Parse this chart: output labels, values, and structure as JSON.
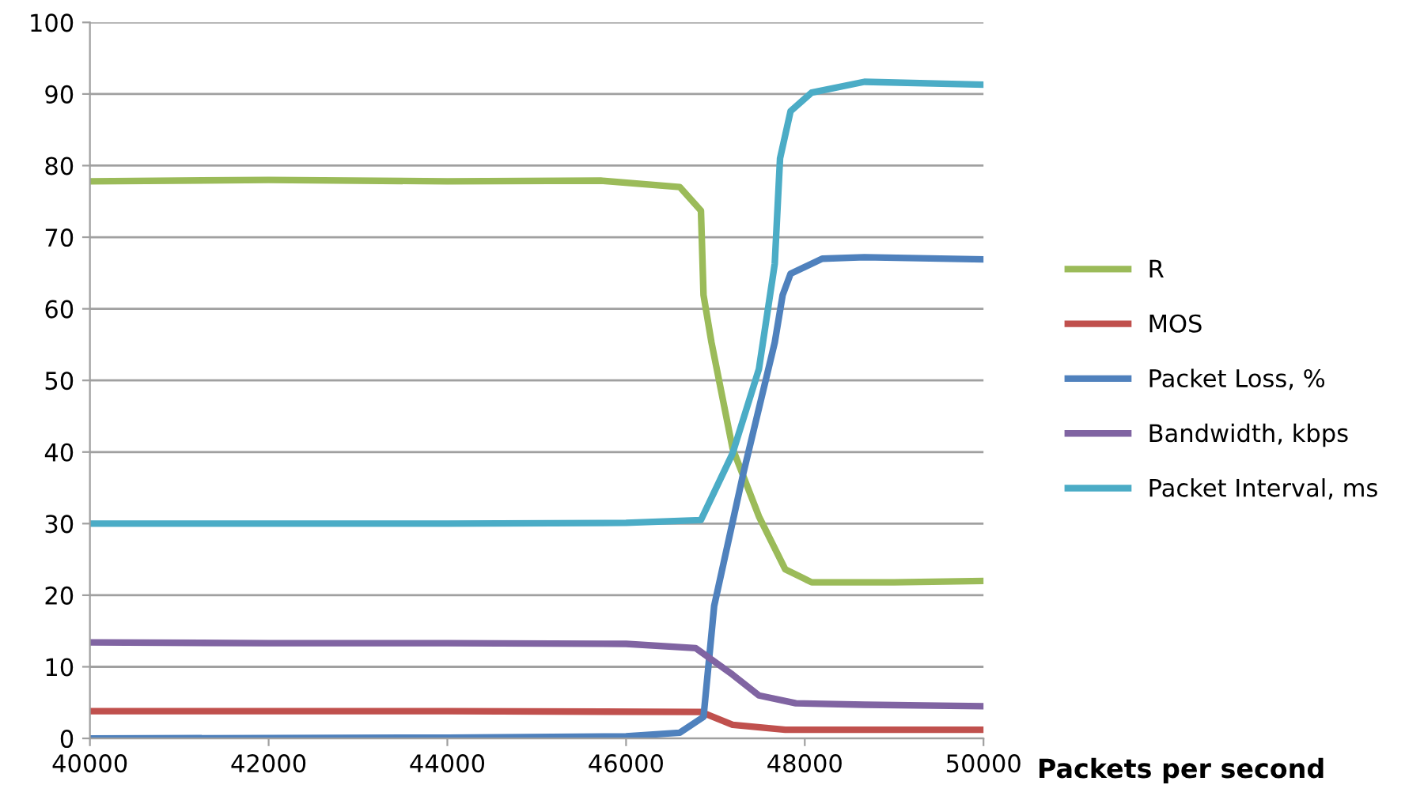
{
  "chart_data": {
    "type": "line",
    "xlabel": "Packets per second",
    "xlim": [
      40000,
      50000
    ],
    "xticks": [
      40000,
      42000,
      44000,
      46000,
      48000,
      50000
    ],
    "ylim": [
      0,
      100
    ],
    "yticks": [
      0,
      10,
      20,
      30,
      40,
      50,
      60,
      70,
      80,
      90,
      100
    ],
    "grid": "y",
    "legend": "right",
    "marker": "none",
    "line_style": "solid",
    "series": [
      {
        "name": "R",
        "color": "#9bbb59",
        "x": [
          40000,
          42000,
          44000,
          45717,
          46602,
          46838,
          46867,
          46956,
          47192,
          47487,
          47782,
          48077,
          49000,
          50000
        ],
        "values": [
          77.8,
          78.0,
          77.8,
          77.9,
          77.0,
          73.7,
          61.9,
          55.3,
          40.5,
          31.0,
          23.6,
          21.8,
          21.8,
          22.0
        ]
      },
      {
        "name": "MOS",
        "color": "#c0504d",
        "x": [
          40000,
          44000,
          46838,
          47192,
          47782,
          48500,
          50000
        ],
        "values": [
          3.8,
          3.8,
          3.7,
          1.9,
          1.2,
          1.2,
          1.2
        ]
      },
      {
        "name": "Packet Loss, %",
        "color": "#4f81bd",
        "x": [
          40000,
          44000,
          46000,
          46602,
          46867,
          46986,
          47310,
          47664,
          47752,
          47841,
          48195,
          48667,
          50000
        ],
        "values": [
          0.0,
          0.1,
          0.3,
          0.8,
          3.0,
          18.5,
          36.9,
          55.3,
          61.9,
          64.9,
          67.0,
          67.2,
          66.9
        ]
      },
      {
        "name": "Bandwidth, kbps",
        "color": "#8064a2",
        "x": [
          40000,
          42000,
          44000,
          46000,
          46779,
          47192,
          47487,
          47900,
          48667,
          50000
        ],
        "values": [
          13.4,
          13.3,
          13.3,
          13.2,
          12.6,
          8.9,
          6.0,
          4.9,
          4.7,
          4.5
        ]
      },
      {
        "name": "Packet Interval, ms",
        "color": "#4bacc6",
        "x": [
          40000,
          44000,
          46000,
          46838,
          47192,
          47487,
          47664,
          47723,
          47841,
          48077,
          48667,
          50000
        ],
        "values": [
          30.0,
          30.0,
          30.1,
          30.5,
          39.8,
          51.6,
          66.3,
          81.0,
          87.6,
          90.2,
          91.7,
          91.3
        ]
      }
    ]
  }
}
